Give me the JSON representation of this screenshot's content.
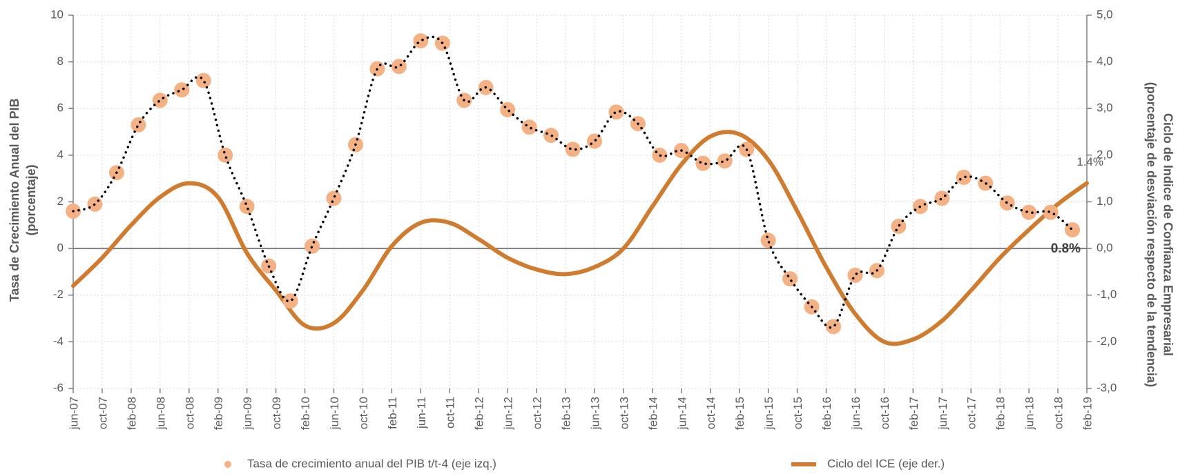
{
  "chart_data": {
    "type": "line",
    "y_label": [
      "Tasa de Crecimiento Anual del PIB",
      "(porcentaje)"
    ],
    "y2_label": [
      "Ciclo de Indice de Confianza Empresarial",
      "(porcentaje de desviación respecto de la tendencia)"
    ],
    "xlim": [
      "jun-07",
      "feb-19"
    ],
    "xticks": [
      "jun-07",
      "oct-07",
      "feb-08",
      "jun-08",
      "oct-08",
      "feb-09",
      "jun-09",
      "oct-09",
      "feb-10",
      "jun-10",
      "oct-10",
      "feb-11",
      "jun-11",
      "oct-11",
      "feb-12",
      "jun-12",
      "oct-12",
      "feb-13",
      "jun-13",
      "oct-13",
      "feb-14",
      "jun-14",
      "oct-14",
      "feb-15",
      "jun-15",
      "oct-15",
      "feb-16",
      "jun-16",
      "oct-16",
      "feb-17",
      "jun-17",
      "oct-17",
      "feb-18",
      "jun-18",
      "oct-18",
      "feb-19"
    ],
    "ylim": [
      -6,
      10
    ],
    "yticks": [
      -6,
      -4,
      -2,
      0,
      2,
      4,
      6,
      8,
      10
    ],
    "y2lim": [
      -3,
      5
    ],
    "y2ticks": [
      {
        "value": -3,
        "label": "-3,0"
      },
      {
        "value": -2,
        "label": "-2,0"
      },
      {
        "value": -1,
        "label": "-1,0"
      },
      {
        "value": 0,
        "label": "0,0"
      },
      {
        "value": 1,
        "label": "1,0"
      },
      {
        "value": 2,
        "label": "2,0"
      },
      {
        "value": 3,
        "label": "3,0"
      },
      {
        "value": 4,
        "label": "4,0"
      },
      {
        "value": 5,
        "label": "5,0"
      }
    ],
    "grid": true,
    "series": [
      {
        "name": "Tasa de crecimiento anual del PIB  t/t-4 (eje izq.)",
        "type": "scatter",
        "color": "#f4b183",
        "line_color": "#000000",
        "x": [
          "jun-07",
          "sep-07",
          "dic-07",
          "mar-08",
          "jun-08",
          "sep-08",
          "dic-08",
          "mar-09",
          "jun-09",
          "sep-09",
          "dic-09",
          "mar-10",
          "jun-10",
          "sep-10",
          "dic-10",
          "mar-11",
          "jun-11",
          "sep-11",
          "dic-11",
          "mar-12",
          "jun-12",
          "sep-12",
          "dic-12",
          "mar-13",
          "jun-13",
          "sep-13",
          "dic-13",
          "mar-14",
          "jun-14",
          "sep-14",
          "dic-14",
          "mar-15",
          "jun-15",
          "sep-15",
          "dic-15",
          "mar-16",
          "jun-16",
          "sep-16",
          "dic-16",
          "mar-17",
          "jun-17",
          "sep-17",
          "dic-17",
          "mar-18",
          "jun-18",
          "sep-18",
          "dic-18"
        ],
        "values": [
          1.6,
          1.9,
          3.25,
          5.3,
          6.35,
          6.8,
          7.2,
          4.0,
          1.8,
          -0.75,
          -2.25,
          0.1,
          2.15,
          4.45,
          7.7,
          7.8,
          8.9,
          8.8,
          6.35,
          6.9,
          5.95,
          5.2,
          4.85,
          4.25,
          4.6,
          5.85,
          5.35,
          4.0,
          4.2,
          3.65,
          3.75,
          4.25,
          0.35,
          -1.3,
          -2.5,
          -3.35,
          -1.15,
          -0.95,
          0.95,
          1.8,
          2.15,
          3.05,
          2.8,
          1.95,
          1.55,
          1.55,
          0.8
        ],
        "value_labels": [
          null,
          null,
          null,
          null,
          null,
          null,
          null,
          null,
          null,
          null,
          null,
          null,
          null,
          null,
          null,
          null,
          null,
          null,
          null,
          null,
          null,
          null,
          null,
          null,
          null,
          null,
          null,
          null,
          null,
          null,
          null,
          null,
          null,
          null,
          null,
          null,
          null,
          null,
          null,
          null,
          null,
          null,
          null,
          null,
          null,
          null,
          "0.8%"
        ]
      },
      {
        "name": "Ciclo del ICE (eje der.)",
        "type": "line",
        "color": "#d07c30",
        "axis": "y2",
        "x": [
          "jun-07",
          "oct-07",
          "feb-08",
          "jun-08",
          "oct-08",
          "feb-09",
          "jun-09",
          "oct-09",
          "feb-10",
          "jun-10",
          "oct-10",
          "feb-11",
          "jun-11",
          "oct-11",
          "feb-12",
          "jun-12",
          "oct-12",
          "feb-13",
          "jun-13",
          "oct-13",
          "feb-14",
          "jun-14",
          "oct-14",
          "feb-15",
          "jun-15",
          "oct-15",
          "feb-16",
          "jun-16",
          "oct-16",
          "feb-17",
          "jun-17",
          "oct-17",
          "feb-18",
          "jun-18",
          "oct-18",
          "feb-19"
        ],
        "values": [
          -0.8,
          -0.2,
          0.5,
          1.1,
          1.4,
          1.1,
          -0.1,
          -0.9,
          -1.65,
          -1.6,
          -0.9,
          0.05,
          0.55,
          0.55,
          0.2,
          -0.2,
          -0.45,
          -0.55,
          -0.4,
          0.0,
          0.9,
          1.8,
          2.4,
          2.45,
          1.9,
          0.8,
          -0.4,
          -1.4,
          -2.0,
          -1.95,
          -1.55,
          -0.9,
          -0.2,
          0.4,
          0.95,
          1.4
        ],
        "value_labels": [
          null,
          null,
          null,
          null,
          null,
          null,
          null,
          null,
          null,
          null,
          null,
          null,
          null,
          null,
          null,
          null,
          null,
          null,
          null,
          null,
          null,
          null,
          null,
          null,
          null,
          null,
          null,
          null,
          null,
          null,
          null,
          null,
          null,
          null,
          null,
          "1.4%"
        ]
      }
    ]
  }
}
